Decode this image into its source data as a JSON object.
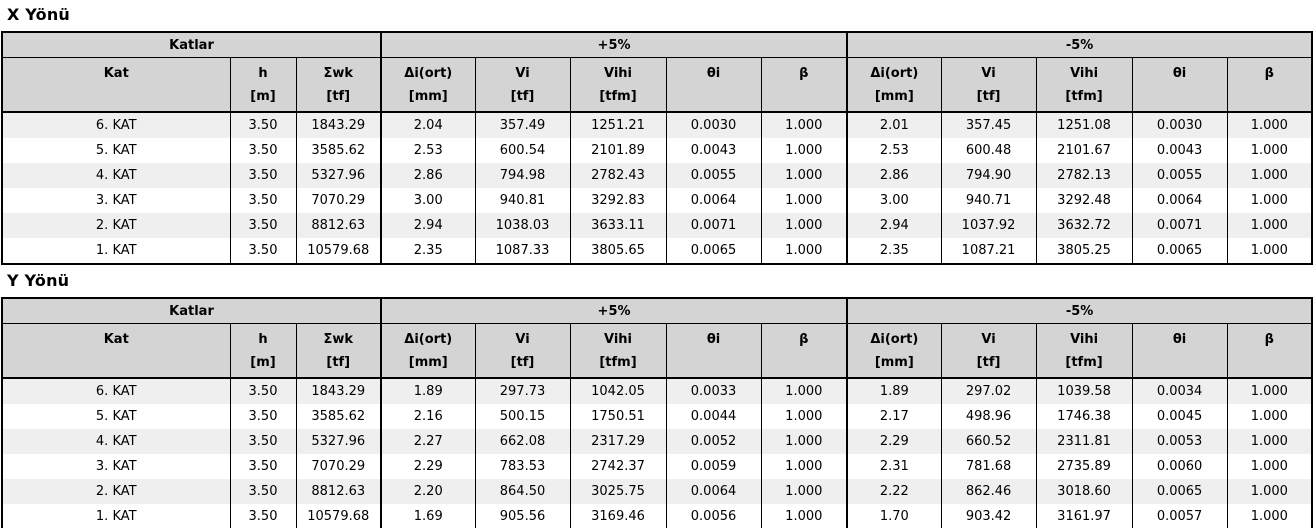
{
  "report": {
    "colors": {
      "page_bg": "#ffffff",
      "header_bg": "#d4d4d4",
      "row_alt_bg": "#efefef",
      "row_bg": "#ffffff",
      "border": "#000000",
      "text": "#000000"
    },
    "group_headers": {
      "base": "Katlar",
      "plus": "+5%",
      "minus": "-5%"
    },
    "columns": {
      "base": [
        {
          "key": "kat",
          "name": "Kat",
          "unit": ""
        },
        {
          "key": "h",
          "name": "h",
          "unit": "[m]"
        },
        {
          "key": "swk",
          "name": "Σwk",
          "unit": "[tf]"
        }
      ],
      "group": [
        {
          "key": "di-ort",
          "name": "Δi(ort)",
          "unit": "[mm]"
        },
        {
          "key": "vi",
          "name": "Vi",
          "unit": "[tf]"
        },
        {
          "key": "vihi",
          "name": "Vihi",
          "unit": "[tfm]"
        },
        {
          "key": "theta-i",
          "name": "θi",
          "unit": ""
        },
        {
          "key": "beta",
          "name": "β",
          "unit": ""
        }
      ]
    },
    "tables": [
      {
        "title": "X Yönü",
        "rows": [
          {
            "kat": "6. KAT",
            "h": "3.50",
            "swk": "1843.29",
            "plus": [
              "2.04",
              "357.49",
              "1251.21",
              "0.0030",
              "1.000"
            ],
            "minus": [
              "2.01",
              "357.45",
              "1251.08",
              "0.0030",
              "1.000"
            ]
          },
          {
            "kat": "5. KAT",
            "h": "3.50",
            "swk": "3585.62",
            "plus": [
              "2.53",
              "600.54",
              "2101.89",
              "0.0043",
              "1.000"
            ],
            "minus": [
              "2.53",
              "600.48",
              "2101.67",
              "0.0043",
              "1.000"
            ]
          },
          {
            "kat": "4. KAT",
            "h": "3.50",
            "swk": "5327.96",
            "plus": [
              "2.86",
              "794.98",
              "2782.43",
              "0.0055",
              "1.000"
            ],
            "minus": [
              "2.86",
              "794.90",
              "2782.13",
              "0.0055",
              "1.000"
            ]
          },
          {
            "kat": "3. KAT",
            "h": "3.50",
            "swk": "7070.29",
            "plus": [
              "3.00",
              "940.81",
              "3292.83",
              "0.0064",
              "1.000"
            ],
            "minus": [
              "3.00",
              "940.71",
              "3292.48",
              "0.0064",
              "1.000"
            ]
          },
          {
            "kat": "2. KAT",
            "h": "3.50",
            "swk": "8812.63",
            "plus": [
              "2.94",
              "1038.03",
              "3633.11",
              "0.0071",
              "1.000"
            ],
            "minus": [
              "2.94",
              "1037.92",
              "3632.72",
              "0.0071",
              "1.000"
            ]
          },
          {
            "kat": "1. KAT",
            "h": "3.50",
            "swk": "10579.68",
            "plus": [
              "2.35",
              "1087.33",
              "3805.65",
              "0.0065",
              "1.000"
            ],
            "minus": [
              "2.35",
              "1087.21",
              "3805.25",
              "0.0065",
              "1.000"
            ]
          }
        ]
      },
      {
        "title": "Y Yönü",
        "rows": [
          {
            "kat": "6. KAT",
            "h": "3.50",
            "swk": "1843.29",
            "plus": [
              "1.89",
              "297.73",
              "1042.05",
              "0.0033",
              "1.000"
            ],
            "minus": [
              "1.89",
              "297.02",
              "1039.58",
              "0.0034",
              "1.000"
            ]
          },
          {
            "kat": "5. KAT",
            "h": "3.50",
            "swk": "3585.62",
            "plus": [
              "2.16",
              "500.15",
              "1750.51",
              "0.0044",
              "1.000"
            ],
            "minus": [
              "2.17",
              "498.96",
              "1746.38",
              "0.0045",
              "1.000"
            ]
          },
          {
            "kat": "4. KAT",
            "h": "3.50",
            "swk": "5327.96",
            "plus": [
              "2.27",
              "662.08",
              "2317.29",
              "0.0052",
              "1.000"
            ],
            "minus": [
              "2.29",
              "660.52",
              "2311.81",
              "0.0053",
              "1.000"
            ]
          },
          {
            "kat": "3. KAT",
            "h": "3.50",
            "swk": "7070.29",
            "plus": [
              "2.29",
              "783.53",
              "2742.37",
              "0.0059",
              "1.000"
            ],
            "minus": [
              "2.31",
              "781.68",
              "2735.89",
              "0.0060",
              "1.000"
            ]
          },
          {
            "kat": "2. KAT",
            "h": "3.50",
            "swk": "8812.63",
            "plus": [
              "2.20",
              "864.50",
              "3025.75",
              "0.0064",
              "1.000"
            ],
            "minus": [
              "2.22",
              "862.46",
              "3018.60",
              "0.0065",
              "1.000"
            ]
          },
          {
            "kat": "1. KAT",
            "h": "3.50",
            "swk": "10579.68",
            "plus": [
              "1.69",
              "905.56",
              "3169.46",
              "0.0056",
              "1.000"
            ],
            "minus": [
              "1.70",
              "903.42",
              "3161.97",
              "0.0057",
              "1.000"
            ]
          }
        ]
      }
    ]
  }
}
